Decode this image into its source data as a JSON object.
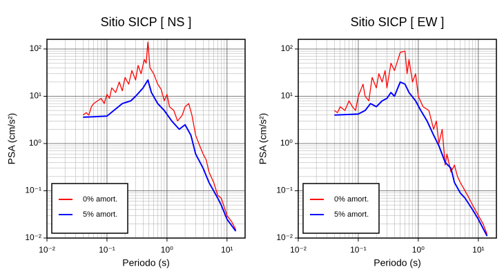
{
  "chart_data": [
    {
      "type": "line",
      "title": "Sitio SICP [ NS ]",
      "xlabel": "Periodo (s)",
      "ylabel": "PSA (cm/s²)",
      "log_x": true,
      "log_y": true,
      "grid": true,
      "legend": "lower left",
      "xlim": [
        0.01,
        20
      ],
      "ylim": [
        0.01,
        160
      ],
      "xticks": [
        {
          "value": 0.01,
          "label": "10⁻²"
        },
        {
          "value": 0.1,
          "label": "10⁻¹"
        },
        {
          "value": 1,
          "label": "10⁰"
        },
        {
          "value": 10,
          "label": "10¹"
        }
      ],
      "yticks": [
        {
          "value": 0.01,
          "label": "10⁻²"
        },
        {
          "value": 0.1,
          "label": "10⁻¹"
        },
        {
          "value": 1,
          "label": "10⁰"
        },
        {
          "value": 10,
          "label": "10¹"
        },
        {
          "value": 100,
          "label": "10²"
        }
      ],
      "xminorticks": [
        0.02,
        0.03,
        0.04,
        0.05,
        0.06,
        0.07,
        0.08,
        0.09,
        0.2,
        0.3,
        0.4,
        0.5,
        0.6,
        0.7,
        0.8,
        0.9,
        2,
        3,
        4,
        5,
        6,
        7,
        8,
        9
      ],
      "yminorticks": [
        0.02,
        0.03,
        0.04,
        0.05,
        0.06,
        0.07,
        0.08,
        0.09,
        0.2,
        0.3,
        0.4,
        0.5,
        0.6,
        0.7,
        0.8,
        0.9,
        2,
        3,
        4,
        5,
        6,
        7,
        8,
        9,
        20,
        30,
        40,
        50,
        60,
        70,
        80,
        90
      ],
      "series": [
        {
          "name": "0% amort.",
          "color": "#ff0000",
          "x": [
            0.04,
            0.045,
            0.05,
            0.055,
            0.06,
            0.07,
            0.08,
            0.09,
            0.1,
            0.11,
            0.12,
            0.14,
            0.16,
            0.18,
            0.2,
            0.23,
            0.26,
            0.3,
            0.33,
            0.37,
            0.42,
            0.45,
            0.48,
            0.52,
            0.6,
            0.7,
            0.8,
            0.9,
            1.0,
            1.1,
            1.3,
            1.5,
            1.8,
            2.0,
            2.3,
            2.6,
            3.0,
            3.5,
            4.0,
            4.5,
            5,
            6,
            7,
            8,
            10,
            12,
            14
          ],
          "values": [
            4,
            4.5,
            4,
            6,
            7,
            8,
            9,
            7,
            11,
            9,
            15,
            12,
            20,
            13,
            25,
            18,
            35,
            22,
            45,
            30,
            60,
            50,
            140,
            40,
            30,
            18,
            14,
            8,
            11,
            6,
            5,
            3,
            4,
            6,
            7,
            4,
            1.5,
            0.9,
            0.6,
            0.45,
            0.25,
            0.15,
            0.08,
            0.07,
            0.03,
            0.022,
            0.015
          ]
        },
        {
          "name": "5% amort.",
          "color": "#0000ff",
          "x": [
            0.04,
            0.1,
            0.13,
            0.18,
            0.25,
            0.3,
            0.4,
            0.48,
            0.55,
            0.7,
            0.9,
            1.2,
            1.6,
            2,
            2.5,
            3,
            4,
            5,
            7,
            8,
            10,
            14
          ],
          "values": [
            3.6,
            3.8,
            5,
            7,
            8,
            10,
            15,
            22,
            12,
            7,
            5,
            3,
            2,
            2.5,
            1.5,
            0.6,
            0.3,
            0.15,
            0.07,
            0.05,
            0.025,
            0.014
          ]
        }
      ]
    },
    {
      "type": "line",
      "title": "Sitio SICP [ EW ]",
      "xlabel": "Periodo (s)",
      "ylabel": "PSA (cm/s²)",
      "log_x": true,
      "log_y": true,
      "grid": true,
      "legend": "lower left",
      "xlim": [
        0.01,
        20
      ],
      "ylim": [
        0.01,
        160
      ],
      "xticks": [
        {
          "value": 0.01,
          "label": "10⁻²"
        },
        {
          "value": 0.1,
          "label": "10⁻¹"
        },
        {
          "value": 1,
          "label": "10⁰"
        },
        {
          "value": 10,
          "label": "10¹"
        }
      ],
      "yticks": [
        {
          "value": 0.01,
          "label": "10⁻²"
        },
        {
          "value": 0.1,
          "label": "10⁻¹"
        },
        {
          "value": 1,
          "label": "10⁰"
        },
        {
          "value": 10,
          "label": "10¹"
        },
        {
          "value": 100,
          "label": "10²"
        }
      ],
      "xminorticks": [
        0.02,
        0.03,
        0.04,
        0.05,
        0.06,
        0.07,
        0.08,
        0.09,
        0.2,
        0.3,
        0.4,
        0.5,
        0.6,
        0.7,
        0.8,
        0.9,
        2,
        3,
        4,
        5,
        6,
        7,
        8,
        9
      ],
      "yminorticks": [
        0.02,
        0.03,
        0.04,
        0.05,
        0.06,
        0.07,
        0.08,
        0.09,
        0.2,
        0.3,
        0.4,
        0.5,
        0.6,
        0.7,
        0.8,
        0.9,
        2,
        3,
        4,
        5,
        6,
        7,
        8,
        9,
        20,
        30,
        40,
        50,
        60,
        70,
        80,
        90
      ],
      "series": [
        {
          "name": "0% amort.",
          "color": "#ff0000",
          "x": [
            0.04,
            0.045,
            0.05,
            0.06,
            0.07,
            0.08,
            0.09,
            0.1,
            0.12,
            0.13,
            0.15,
            0.17,
            0.2,
            0.22,
            0.25,
            0.28,
            0.3,
            0.35,
            0.4,
            0.45,
            0.5,
            0.6,
            0.65,
            0.7,
            0.8,
            0.9,
            1.0,
            1.2,
            1.5,
            1.8,
            2.0,
            2.2,
            2.5,
            2.8,
            3.0,
            3.5,
            4,
            4.5,
            5,
            6,
            7,
            8,
            10,
            12,
            14
          ],
          "values": [
            5,
            4.5,
            6,
            5,
            8,
            6,
            5,
            10,
            18,
            10,
            8,
            25,
            15,
            30,
            20,
            35,
            15,
            50,
            35,
            55,
            85,
            90,
            30,
            60,
            20,
            30,
            10,
            6,
            5,
            2,
            3,
            1,
            2,
            0.35,
            0.6,
            0.25,
            0.35,
            0.2,
            0.15,
            0.1,
            0.07,
            0.05,
            0.03,
            0.02,
            0.012
          ]
        },
        {
          "name": "5% amort.",
          "color": "#0000ff",
          "x": [
            0.04,
            0.1,
            0.13,
            0.16,
            0.2,
            0.25,
            0.3,
            0.35,
            0.4,
            0.5,
            0.6,
            0.7,
            0.9,
            1.1,
            1.4,
            1.8,
            2.2,
            2.8,
            3.5,
            4,
            5,
            6,
            8,
            10,
            14
          ],
          "values": [
            4,
            4.2,
            5,
            7,
            6,
            8,
            9,
            12,
            10,
            20,
            18,
            12,
            8,
            5,
            3,
            1.5,
            0.9,
            0.4,
            0.3,
            0.15,
            0.09,
            0.07,
            0.04,
            0.025,
            0.011
          ]
        }
      ]
    }
  ]
}
